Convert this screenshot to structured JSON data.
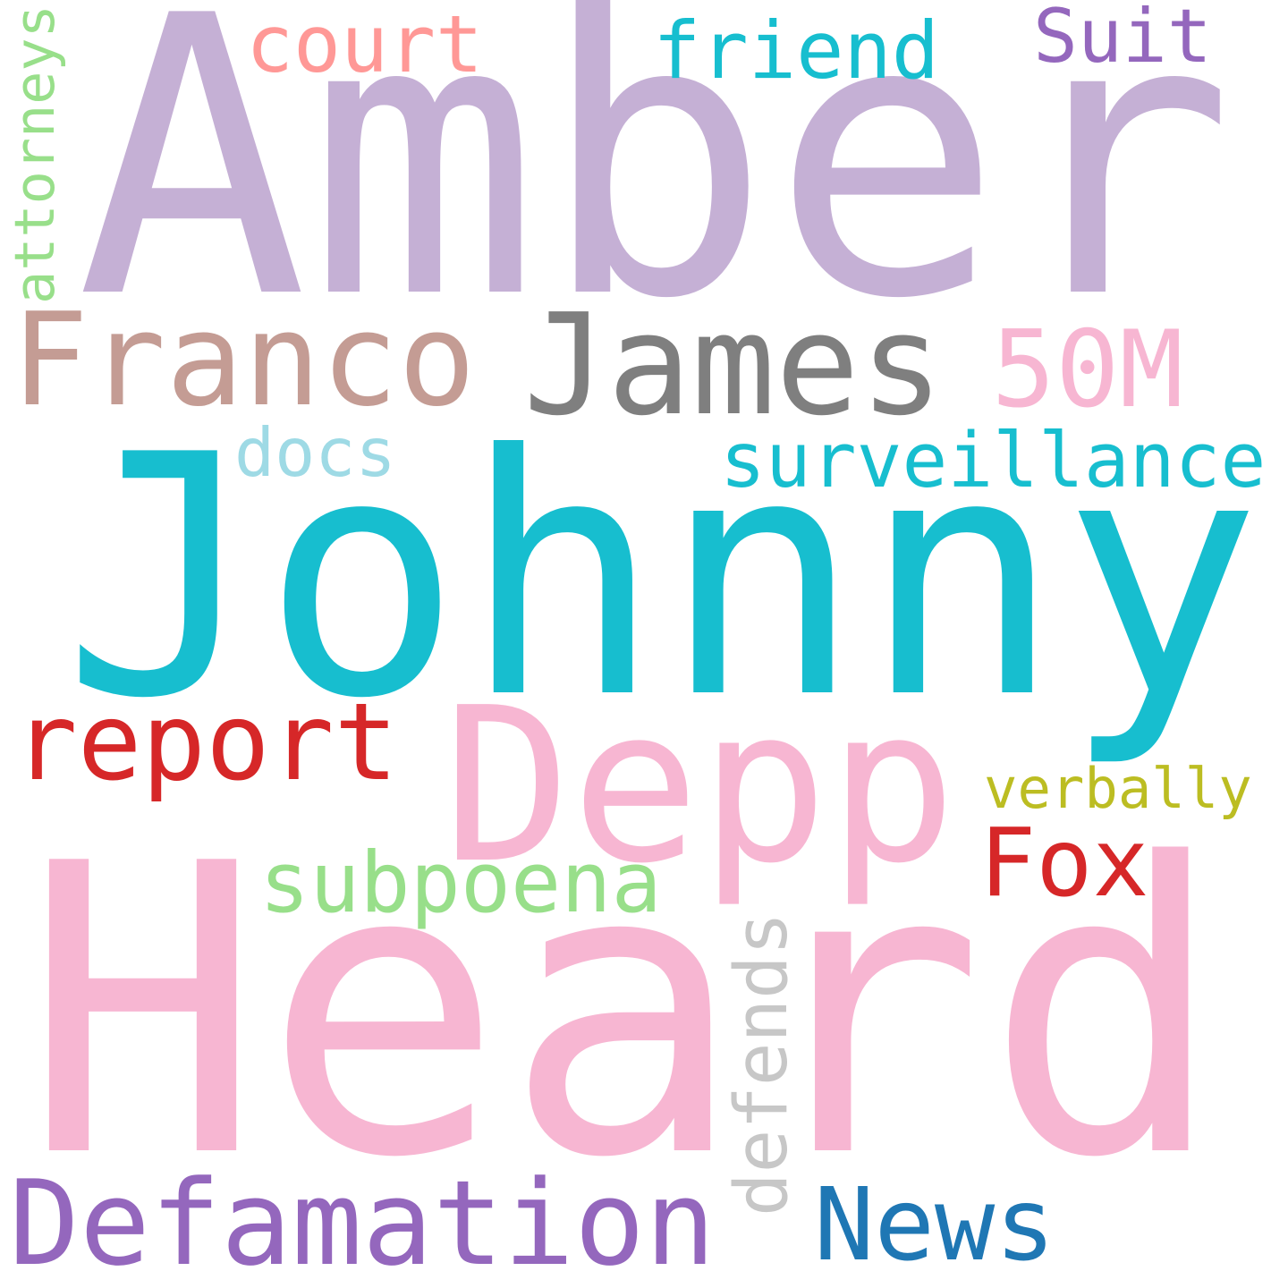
{
  "words": [
    {
      "key": "amber",
      "text": "Amber",
      "color": "#c5b0d5"
    },
    {
      "key": "johnny",
      "text": "Johnny",
      "color": "#17becf"
    },
    {
      "key": "heard",
      "text": "Heard",
      "color": "#f7b6d2"
    },
    {
      "key": "depp",
      "text": "Depp",
      "color": "#f7b6d2"
    },
    {
      "key": "franco",
      "text": "Franco",
      "color": "#c49c94"
    },
    {
      "key": "james",
      "text": "James",
      "color": "#7f7f7f"
    },
    {
      "key": "50m",
      "text": "50M",
      "color": "#f7b6d2"
    },
    {
      "key": "court",
      "text": "court",
      "color": "#ff9896"
    },
    {
      "key": "friend",
      "text": "friend",
      "color": "#17becf"
    },
    {
      "key": "suit",
      "text": "Suit",
      "color": "#9467bd"
    },
    {
      "key": "attorneys",
      "text": "attorneys",
      "color": "#98df8a"
    },
    {
      "key": "docs",
      "text": "docs",
      "color": "#9edae5"
    },
    {
      "key": "surveillance",
      "text": "surveillance",
      "color": "#17becf"
    },
    {
      "key": "report",
      "text": "report",
      "color": "#d62728"
    },
    {
      "key": "verbally",
      "text": "verbally",
      "color": "#bcbd22"
    },
    {
      "key": "fox",
      "text": "Fox",
      "color": "#d62728"
    },
    {
      "key": "subpoena",
      "text": "subpoena",
      "color": "#98df8a"
    },
    {
      "key": "defends",
      "text": "defends",
      "color": "#c7c7c7"
    },
    {
      "key": "defamation",
      "text": "Defamation",
      "color": "#9467bd"
    },
    {
      "key": "news",
      "text": "News",
      "color": "#1f77b4"
    }
  ]
}
